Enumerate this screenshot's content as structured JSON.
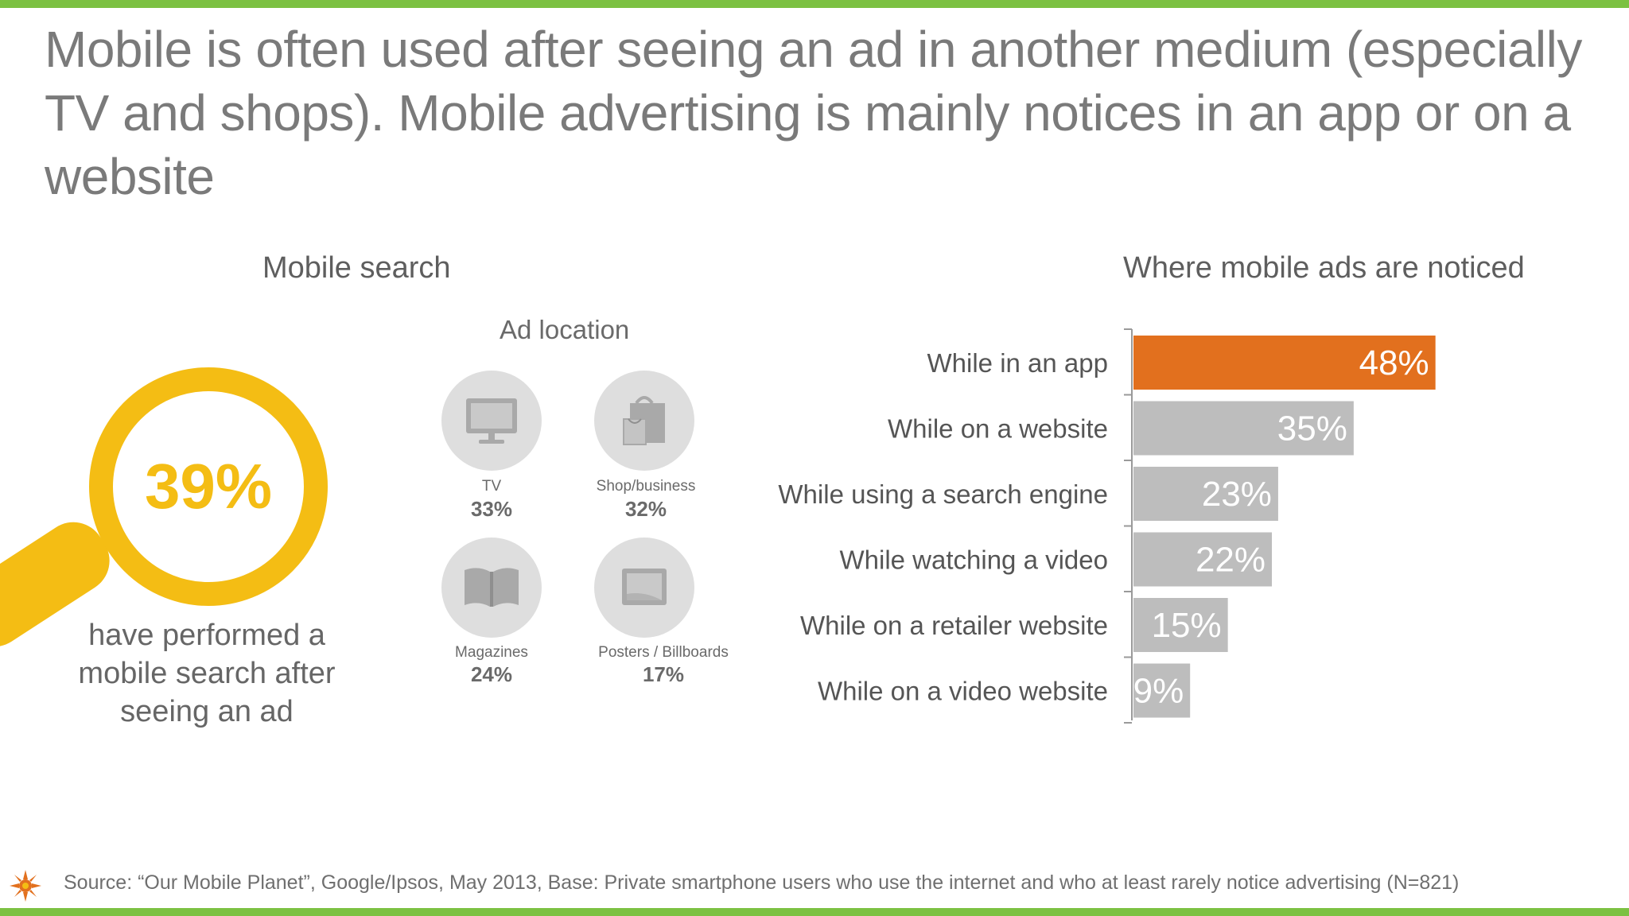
{
  "title": "Mobile is often used after seeing an ad in another medium (especially TV and shops). Mobile advertising is mainly notices in an app or on a website",
  "colors": {
    "green": "#7cc142",
    "yellow": "#f4bd14",
    "orange": "#e2701e",
    "gray_bar": "#bdbdbd",
    "icon_circle": "#dedede"
  },
  "mobile_search": {
    "heading": "Mobile search",
    "value": "39%",
    "caption_lines": [
      "have performed a",
      "mobile search after",
      "seeing an ad"
    ],
    "icon": "magnifier-icon"
  },
  "ad_location": {
    "heading": "Ad location",
    "items": [
      {
        "label": "TV",
        "value": "33%",
        "icon": "tv-icon"
      },
      {
        "label": "Shop/business",
        "value": "32%",
        "icon": "shopping-bag-icon"
      },
      {
        "label": "Magazines",
        "value": "24%",
        "icon": "magazine-icon"
      },
      {
        "label": "Posters / Billboards",
        "value": "17%",
        "icon": "billboard-icon"
      }
    ]
  },
  "chart_data": {
    "type": "bar",
    "orientation": "horizontal",
    "title": "Where mobile ads are noticed",
    "categories": [
      "While in an app",
      "While on a website",
      "While using a search engine",
      "While watching a video",
      "While on a retailer website",
      "While on a video website"
    ],
    "values": [
      48,
      35,
      23,
      22,
      15,
      9
    ],
    "value_labels": [
      "48%",
      "35%",
      "23%",
      "22%",
      "15%",
      "9%"
    ],
    "xlim": [
      0,
      100
    ],
    "highlight_index": 0,
    "grid": false,
    "legend": "none"
  },
  "source": "Source: “Our Mobile Planet”, Google/Ipsos, May 2013, Base: Private smartphone users who use the internet and who at least rarely notice advertising (N=821)",
  "logo_icon": "sun-logo-icon"
}
